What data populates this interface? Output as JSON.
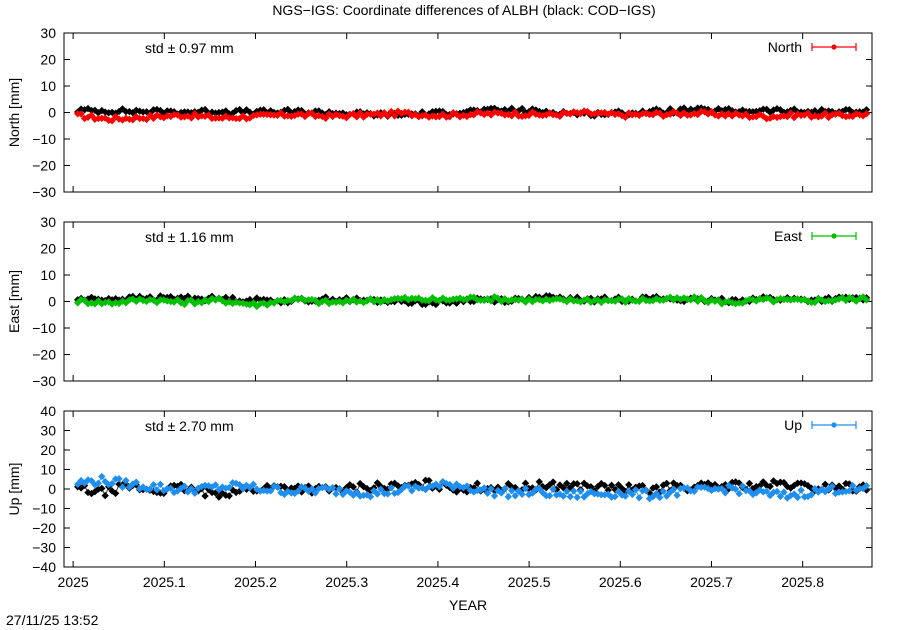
{
  "chart_data": {
    "type": "scatter",
    "title": "NGS−IGS: Coordinate differences of ALBH (black: COD−IGS)",
    "xlabel": "YEAR",
    "xlim": [
      2024.99,
      2025.876
    ],
    "x_ticks": [
      "2025",
      "2025.1",
      "2025.2",
      "2025.3",
      "2025.4",
      "2025.5",
      "2025.6",
      "2025.7",
      "2025.8"
    ],
    "x_tick_values": [
      2025.0,
      2025.1,
      2025.2,
      2025.3,
      2025.4,
      2025.5,
      2025.6,
      2025.7,
      2025.8
    ],
    "reference_series_color": "#000000",
    "panels": [
      {
        "name": "North",
        "ylabel": "North [mm]",
        "ylim": [
          -30,
          30
        ],
        "y_ticks": [
          "30",
          "20",
          "10",
          "0",
          "−10",
          "−20",
          "−30"
        ],
        "y_tick_values": [
          30,
          20,
          10,
          0,
          -10,
          -20,
          -30
        ],
        "std_label": "std ± 0.97 mm",
        "legend": "North",
        "color": "#ff0000",
        "series": [
          {
            "x": [
              2025.005,
              2025.04,
              2025.08,
              2025.12,
              2025.16,
              2025.2,
              2025.24,
              2025.28,
              2025.32,
              2025.36,
              2025.4,
              2025.44,
              2025.48,
              2025.52,
              2025.56,
              2025.6,
              2025.64,
              2025.68,
              2025.72,
              2025.76,
              2025.8,
              2025.84,
              2025.87
            ],
            "y": [
              -1.2,
              -2.5,
              -1.8,
              -1.0,
              -2.0,
              -1.5,
              -0.8,
              -1.4,
              -1.0,
              -0.3,
              -1.1,
              -0.6,
              -0.4,
              -0.9,
              -0.2,
              -1.0,
              -0.6,
              -0.3,
              -0.8,
              -1.5,
              -0.9,
              -1.2,
              -0.6
            ]
          },
          {
            "x": [
              2025.005,
              2025.04,
              2025.08,
              2025.12,
              2025.16,
              2025.2,
              2025.24,
              2025.28,
              2025.32,
              2025.36,
              2025.4,
              2025.44,
              2025.48,
              2025.52,
              2025.56,
              2025.6,
              2025.64,
              2025.68,
              2025.72,
              2025.76,
              2025.8,
              2025.84,
              2025.87
            ],
            "y": [
              0.8,
              0.6,
              0.4,
              0.2,
              0.5,
              0.1,
              0.3,
              0.0,
              -0.6,
              -0.8,
              -0.2,
              0.6,
              0.9,
              0.3,
              -0.5,
              -0.3,
              0.4,
              0.9,
              0.6,
              0.8,
              0.3,
              0.5,
              0.2
            ]
          }
        ]
      },
      {
        "name": "East",
        "ylabel": "East [mm]",
        "ylim": [
          -30,
          30
        ],
        "y_ticks": [
          "30",
          "20",
          "10",
          "0",
          "−10",
          "−20",
          "−30"
        ],
        "y_tick_values": [
          30,
          20,
          10,
          0,
          -10,
          -20,
          -30
        ],
        "std_label": "std ± 1.16 mm",
        "legend": "East",
        "color": "#00c000",
        "series": [
          {
            "x": [
              2025.005,
              2025.04,
              2025.08,
              2025.12,
              2025.16,
              2025.2,
              2025.24,
              2025.28,
              2025.32,
              2025.36,
              2025.4,
              2025.44,
              2025.48,
              2025.52,
              2025.56,
              2025.6,
              2025.64,
              2025.68,
              2025.72,
              2025.76,
              2025.8,
              2025.84,
              2025.87
            ],
            "y": [
              0.2,
              -0.5,
              0.8,
              -0.3,
              0.5,
              -1.2,
              0.9,
              -0.4,
              0.3,
              1.0,
              0.6,
              1.2,
              0.8,
              0.3,
              0.5,
              0.4,
              0.7,
              0.9,
              -0.4,
              0.6,
              0.2,
              0.8,
              1.0
            ]
          },
          {
            "x": [
              2025.005,
              2025.04,
              2025.08,
              2025.12,
              2025.16,
              2025.2,
              2025.24,
              2025.28,
              2025.32,
              2025.36,
              2025.4,
              2025.44,
              2025.48,
              2025.52,
              2025.56,
              2025.6,
              2025.64,
              2025.68,
              2025.72,
              2025.76,
              2025.8,
              2025.84,
              2025.87
            ],
            "y": [
              0.8,
              1.0,
              1.2,
              1.4,
              1.0,
              0.5,
              0.3,
              0.9,
              0.4,
              0.2,
              -0.6,
              0.8,
              0.5,
              1.4,
              0.6,
              0.9,
              1.2,
              0.5,
              0.4,
              1.2,
              0.6,
              0.9,
              1.1
            ]
          }
        ]
      },
      {
        "name": "Up",
        "ylabel": "Up [mm]",
        "ylim": [
          -40,
          40
        ],
        "y_ticks": [
          "40",
          "30",
          "20",
          "10",
          "0",
          "−10",
          "−20",
          "−30",
          "−40"
        ],
        "y_tick_values": [
          40,
          30,
          20,
          10,
          0,
          -10,
          -20,
          -30,
          -40
        ],
        "std_label": "std ± 2.70 mm",
        "legend": "Up",
        "color": "#1e8ff0",
        "series": [
          {
            "x": [
              2025.005,
              2025.03,
              2025.06,
              2025.09,
              2025.12,
              2025.15,
              2025.18,
              2025.21,
              2025.24,
              2025.27,
              2025.3,
              2025.33,
              2025.36,
              2025.39,
              2025.42,
              2025.45,
              2025.48,
              2025.51,
              2025.54,
              2025.57,
              2025.6,
              2025.63,
              2025.66,
              2025.69,
              2025.72,
              2025.75,
              2025.78,
              2025.81,
              2025.84,
              2025.87
            ],
            "y": [
              3.0,
              4.5,
              2.5,
              1.0,
              -0.5,
              0.5,
              1.5,
              0.0,
              -1.0,
              -0.5,
              -1.0,
              -2.0,
              -0.5,
              1.0,
              2.5,
              -1.0,
              -2.0,
              -1.5,
              -3.0,
              -2.5,
              -2.0,
              -3.0,
              -1.5,
              -1.0,
              0.5,
              -2.0,
              -3.5,
              -1.5,
              0.0,
              -0.5
            ]
          },
          {
            "x": [
              2025.005,
              2025.03,
              2025.06,
              2025.09,
              2025.12,
              2025.15,
              2025.18,
              2025.21,
              2025.24,
              2025.27,
              2025.3,
              2025.33,
              2025.36,
              2025.39,
              2025.42,
              2025.45,
              2025.48,
              2025.51,
              2025.54,
              2025.57,
              2025.6,
              2025.63,
              2025.66,
              2025.69,
              2025.72,
              2025.75,
              2025.78,
              2025.81,
              2025.84,
              2025.87
            ],
            "y": [
              0.5,
              -2.0,
              1.5,
              -1.0,
              0.5,
              -2.5,
              -1.0,
              0.5,
              1.0,
              -0.5,
              0.0,
              1.5,
              1.0,
              2.5,
              0.5,
              1.0,
              0.5,
              1.5,
              2.0,
              1.0,
              0.5,
              -0.5,
              1.5,
              1.0,
              2.0,
              1.5,
              2.5,
              0.5,
              1.5,
              0.0
            ]
          }
        ]
      }
    ]
  },
  "footer": {
    "timestamp": "27/11/25 13:52"
  }
}
